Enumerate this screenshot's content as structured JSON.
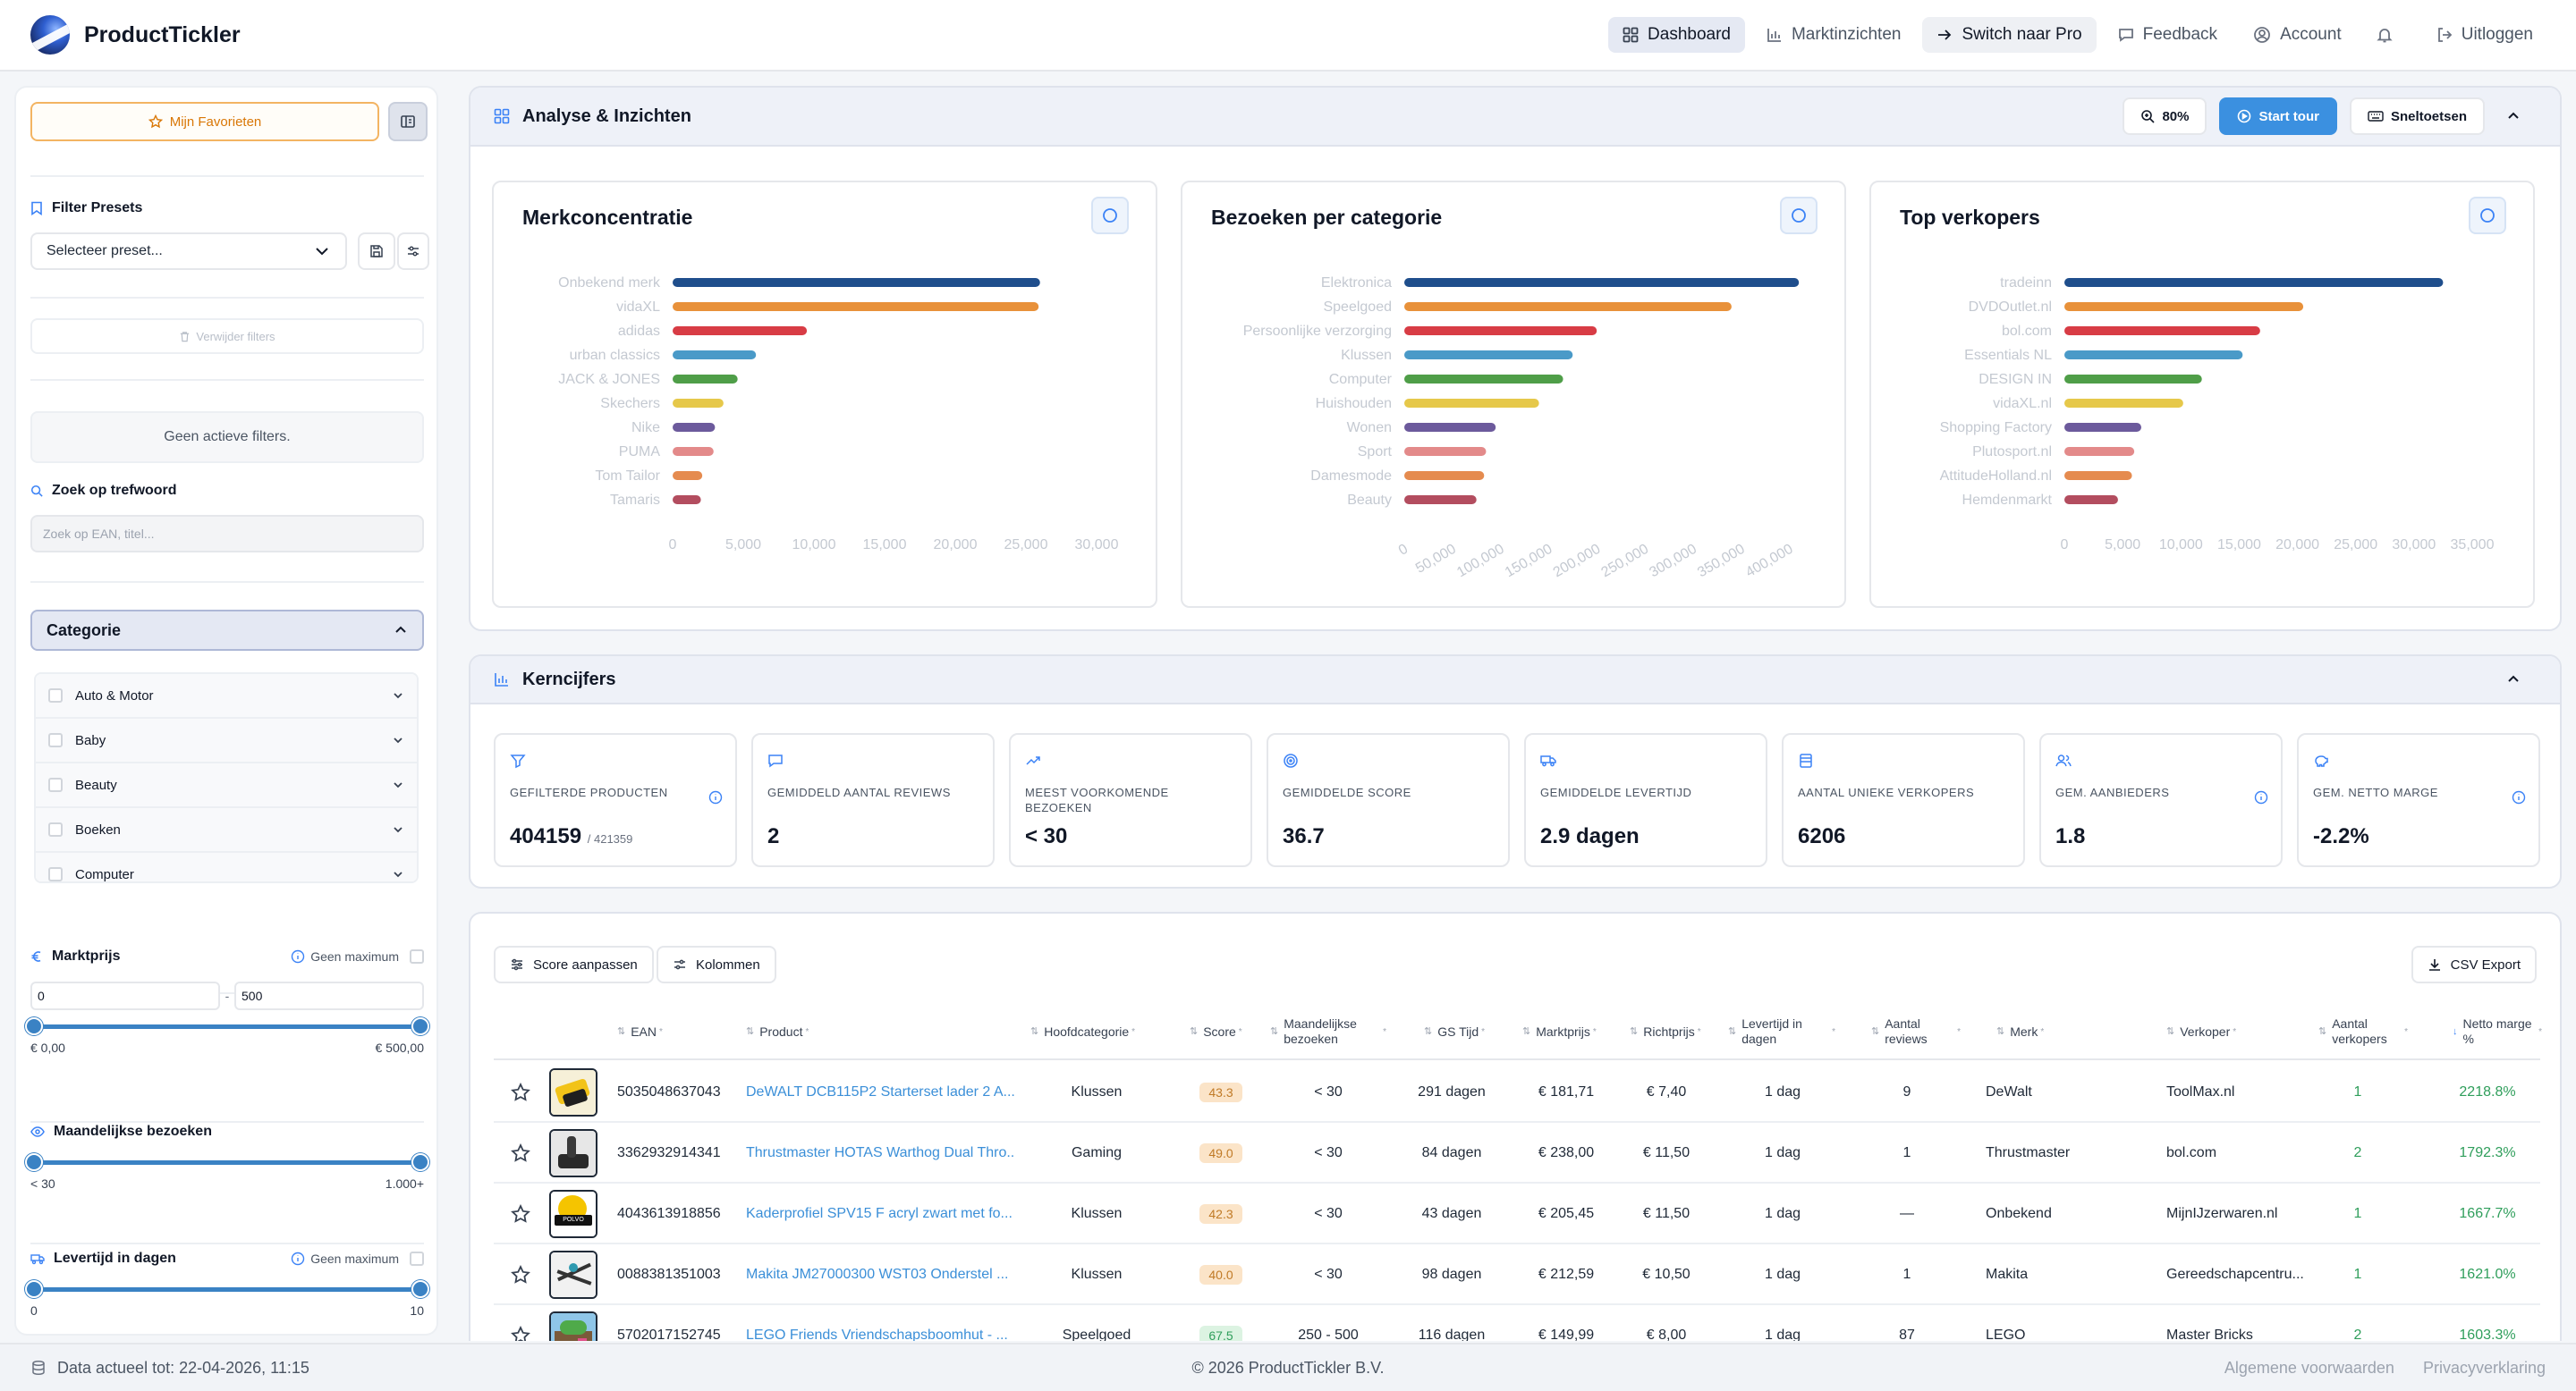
{
  "brand": {
    "name": "ProductTickler"
  },
  "nav": {
    "dashboard": "Dashboard",
    "marktinzichten": "Marktinzichten",
    "pro": "Switch naar Pro",
    "feedback": "Feedback",
    "account": "Account",
    "logout": "Uitloggen"
  },
  "sidebar": {
    "favorites": "Mijn Favorieten",
    "presets_label": "Filter Presets",
    "preset_select": "Selecteer preset...",
    "remove_filters": "Verwijder filters",
    "no_filters": "Geen actieve filters.",
    "search_label": "Zoek op trefwoord",
    "search_placeholder": "Zoek op EAN, titel...",
    "category_header": "Categorie",
    "categories": [
      {
        "label": "Auto & Motor"
      },
      {
        "label": "Baby"
      },
      {
        "label": "Beauty"
      },
      {
        "label": "Boeken"
      },
      {
        "label": "Computer"
      }
    ],
    "marktprijs": {
      "label": "Marktprijs",
      "no_max": "Geen maximum",
      "min_value": "0",
      "max_value": "500",
      "min_label": "€ 0,00",
      "max_label": "€ 500,00"
    },
    "bezoeken": {
      "label": "Maandelijkse bezoeken",
      "min_label": "< 30",
      "max_label": "1.000+"
    },
    "levertijd": {
      "label": "Levertijd in dagen",
      "no_max": "Geen maximum",
      "min_label": "0",
      "max_label": "10"
    }
  },
  "analyse": {
    "title": "Analyse & Inzichten",
    "zoom": "80%",
    "start_tour": "Start tour",
    "shortcuts": "Sneltoetsen"
  },
  "chart_data": [
    {
      "type": "bar",
      "orientation": "horizontal",
      "title": "Merkconcentratie",
      "categories": [
        "Onbekend merk",
        "vidaXL",
        "adidas",
        "urban classics",
        "JACK & JONES",
        "Skechers",
        "Nike",
        "PUMA",
        "Tom Tailor",
        "Tamaris"
      ],
      "values": [
        26000,
        25900,
        9500,
        5900,
        4600,
        3600,
        3000,
        2900,
        2100,
        2000
      ],
      "xticks": [
        "0",
        "5,000",
        "10,000",
        "15,000",
        "20,000",
        "25,000",
        "30,000"
      ],
      "xlim": [
        0,
        30000
      ],
      "colors": [
        "#1f4e8c",
        "#e8913a",
        "#d83c45",
        "#4a9ac8",
        "#4f9e48",
        "#e6c84a",
        "#6c5a9c",
        "#e38a8a",
        "#e58b4f",
        "#b34d5f"
      ]
    },
    {
      "type": "bar",
      "orientation": "horizontal",
      "title": "Bezoeken per categorie",
      "categories": [
        "Elektronica",
        "Speelgoed",
        "Persoonlijke verzorging",
        "Klussen",
        "Computer",
        "Huishouden",
        "Wonen",
        "Sport",
        "Damesmode",
        "Beauty"
      ],
      "values": [
        410000,
        340000,
        200000,
        175000,
        165000,
        140000,
        95000,
        85000,
        83000,
        75000
      ],
      "xticks": [
        "0",
        "50,000",
        "100,000",
        "150,000",
        "200,000",
        "250,000",
        "300,000",
        "350,000",
        "400,000"
      ],
      "xlim": [
        0,
        420000
      ],
      "colors": [
        "#1f4e8c",
        "#e8913a",
        "#d83c45",
        "#4a9ac8",
        "#4f9e48",
        "#e6c84a",
        "#6c5a9c",
        "#e38a8a",
        "#e58b4f",
        "#b34d5f"
      ]
    },
    {
      "type": "bar",
      "orientation": "horizontal",
      "title": "Top verkopers",
      "categories": [
        "tradeinn",
        "DVDOutlet.nl",
        "bol.com",
        "Essentials NL",
        "DESIGN IN",
        "vidaXL.nl",
        "Shopping Factory",
        "Plutosport.nl",
        "AttitudeHolland.nl",
        "Hemdenmarkt"
      ],
      "values": [
        32500,
        20500,
        16800,
        15300,
        11800,
        10200,
        6600,
        6000,
        5800,
        4600
      ],
      "xticks": [
        "0",
        "5,000",
        "10,000",
        "15,000",
        "20,000",
        "25,000",
        "30,000",
        "35,000"
      ],
      "xlim": [
        0,
        35000
      ],
      "colors": [
        "#1f4e8c",
        "#e8913a",
        "#d83c45",
        "#4a9ac8",
        "#4f9e48",
        "#e6c84a",
        "#6c5a9c",
        "#e38a8a",
        "#e58b4f",
        "#b34d5f"
      ]
    }
  ],
  "kern": {
    "title": "Kerncijfers",
    "cards": [
      {
        "label": "Gefilterde producten",
        "value": "404159",
        "sub": "/ 421359",
        "icon": "filter-icon",
        "info": true
      },
      {
        "label": "Gemiddeld aantal reviews",
        "value": "2",
        "sub": "",
        "icon": "message-icon",
        "info": false
      },
      {
        "label": "Meest voorkomende bezoeken",
        "value": "< 30",
        "sub": "",
        "icon": "trend-icon",
        "info": false
      },
      {
        "label": "Gemiddelde score",
        "value": "36.7",
        "sub": "",
        "icon": "target-icon",
        "info": false
      },
      {
        "label": "Gemiddelde levertijd",
        "value": "2.9 dagen",
        "sub": "",
        "icon": "truck-icon",
        "info": false
      },
      {
        "label": "Aantal unieke verkopers",
        "value": "6206",
        "sub": "",
        "icon": "store-icon",
        "info": false
      },
      {
        "label": "Gem. aanbieders",
        "value": "1.8",
        "sub": "",
        "icon": "users-icon",
        "info": true
      },
      {
        "label": "Gem. netto marge",
        "value": "-2.2%",
        "sub": "",
        "icon": "piggy-icon",
        "info": true
      }
    ]
  },
  "table": {
    "score_btn": "Score aanpassen",
    "columns_btn": "Kolommen",
    "csv_btn": "CSV Export",
    "headers": {
      "ean": "EAN",
      "product": "Product",
      "categorie": "Hoofdcategorie",
      "score": "Score",
      "bezoeken": "Maandelijkse bezoeken",
      "gs": "GS Tijd",
      "marktprijs": "Marktprijs",
      "richtprijs": "Richtprijs",
      "levertijd": "Levertijd in dagen",
      "reviews": "Aantal reviews",
      "merk": "Merk",
      "verkoper": "Verkoper",
      "verkopers": "Aantal verkopers",
      "marge": "Netto marge %"
    },
    "rows": [
      {
        "ean": "5035048637043",
        "product": "DeWALT DCB115P2 Starterset lader 2 A...",
        "categorie": "Klussen",
        "score": "43.3",
        "bezoeken": "< 30",
        "gs": "291 dagen",
        "marktprijs": "€ 181,71",
        "richtprijs": "€ 7,40",
        "levertijd": "1 dag",
        "reviews": "9",
        "merk": "DeWalt",
        "verkoper": "ToolMax.nl",
        "verkopers": "1",
        "marge": "2218.8%",
        "thumb": "drill"
      },
      {
        "ean": "3362932914341",
        "product": "Thrustmaster HOTAS Warthog Dual Thro...",
        "categorie": "Gaming",
        "score": "49.0",
        "bezoeken": "< 30",
        "gs": "84 dagen",
        "marktprijs": "€ 238,00",
        "richtprijs": "€ 11,50",
        "levertijd": "1 dag",
        "reviews": "1",
        "merk": "Thrustmaster",
        "verkoper": "bol.com",
        "verkopers": "2",
        "marge": "1792.3%",
        "thumb": "joystick"
      },
      {
        "ean": "4043613918856",
        "product": "Kaderprofiel SPV15 F acryl zwart met fo...",
        "categorie": "Klussen",
        "score": "42.3",
        "bezoeken": "< 30",
        "gs": "43 dagen",
        "marktprijs": "€ 205,45",
        "richtprijs": "€ 11,50",
        "levertijd": "1 dag",
        "reviews": "—",
        "merk": "Onbekend",
        "verkoper": "MijnIJzerwaren.nl",
        "verkopers": "1",
        "marge": "1667.7%",
        "thumb": "polvo",
        "thumb_text": "POLVO"
      },
      {
        "ean": "0088381351003",
        "product": "Makita JM27000300 WST03 Onderstel ...",
        "categorie": "Klussen",
        "score": "40.0",
        "bezoeken": "< 30",
        "gs": "98 dagen",
        "marktprijs": "€ 212,59",
        "richtprijs": "€ 10,50",
        "levertijd": "1 dag",
        "reviews": "1",
        "merk": "Makita",
        "verkoper": "Gereedschapcentru...",
        "verkopers": "1",
        "marge": "1621.0%",
        "thumb": "stand"
      },
      {
        "ean": "5702017152745",
        "product": "LEGO Friends Vriendschapsboomhut - ...",
        "categorie": "Speelgoed",
        "score": "67.5",
        "bezoeken": "250 - 500",
        "gs": "116 dagen",
        "marktprijs": "€ 149,99",
        "richtprijs": "€ 8,00",
        "levertijd": "1 dag",
        "reviews": "87",
        "merk": "LEGO",
        "verkoper": "Master Bricks",
        "verkopers": "2",
        "marge": "1603.3%",
        "thumb": "lego"
      }
    ]
  },
  "footer": {
    "data_date": "Data actueel tot: 22-04-2026, 11:15",
    "copyright": "© 2026 ProductTickler B.V.",
    "terms": "Algemene voorwaarden",
    "privacy": "Privacyverklaring"
  }
}
